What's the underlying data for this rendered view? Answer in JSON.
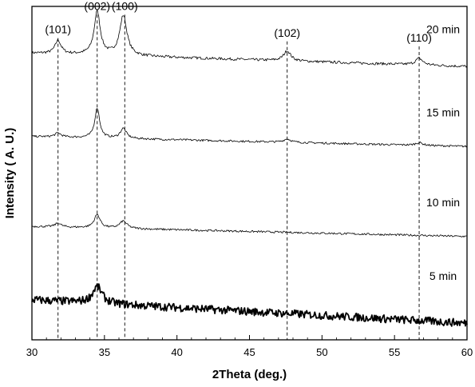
{
  "chart_data": {
    "type": "line",
    "title": "",
    "xlabel": "2Theta (deg.)",
    "ylabel": "Intensity ( A. U.)",
    "xlim": [
      30,
      60
    ],
    "xticks": [
      30,
      35,
      40,
      45,
      50,
      55,
      60
    ],
    "yticks_shown": false,
    "grid": false,
    "legend": "none",
    "series": [
      {
        "name": "20 min",
        "baseline": 0.86,
        "noise": 0.004,
        "peaks": [
          {
            "x": 31.8,
            "height": 0.04,
            "width": 0.25
          },
          {
            "x": 34.5,
            "height": 0.13,
            "width": 0.25
          },
          {
            "x": 36.3,
            "height": 0.12,
            "width": 0.3
          },
          {
            "x": 47.6,
            "height": 0.03,
            "width": 0.3
          },
          {
            "x": 56.7,
            "height": 0.02,
            "width": 0.3
          }
        ],
        "drift": -0.04,
        "line_width": 0.8
      },
      {
        "name": "15 min",
        "baseline": 0.61,
        "noise": 0.003,
        "peaks": [
          {
            "x": 31.8,
            "height": 0.012,
            "width": 0.25
          },
          {
            "x": 34.5,
            "height": 0.09,
            "width": 0.2
          },
          {
            "x": 36.3,
            "height": 0.03,
            "width": 0.25
          },
          {
            "x": 47.6,
            "height": 0.01,
            "width": 0.3
          },
          {
            "x": 56.7,
            "height": 0.008,
            "width": 0.3
          }
        ],
        "drift": -0.03,
        "line_width": 0.8
      },
      {
        "name": "10 min",
        "baseline": 0.34,
        "noise": 0.003,
        "peaks": [
          {
            "x": 31.8,
            "height": 0.012,
            "width": 0.25
          },
          {
            "x": 34.5,
            "height": 0.04,
            "width": 0.25
          },
          {
            "x": 36.3,
            "height": 0.022,
            "width": 0.3
          }
        ],
        "drift": -0.03,
        "line_width": 0.8
      },
      {
        "name": "5 min",
        "baseline": 0.12,
        "noise": 0.012,
        "peaks": [
          {
            "x": 34.5,
            "height": 0.05,
            "width": 0.4
          }
        ],
        "drift": -0.07,
        "line_width": 1.8
      }
    ],
    "reference_lines": [
      {
        "x": 31.8,
        "label": "(101)",
        "y_top": 0.905
      },
      {
        "x": 34.5,
        "label": "(002)",
        "y_top": 0.975
      },
      {
        "x": 36.4,
        "label": "(100)",
        "y_top": 0.975
      },
      {
        "x": 47.6,
        "label": "(102)",
        "y_top": 0.895
      },
      {
        "x": 56.7,
        "label": "(110)",
        "y_top": 0.88
      }
    ]
  }
}
